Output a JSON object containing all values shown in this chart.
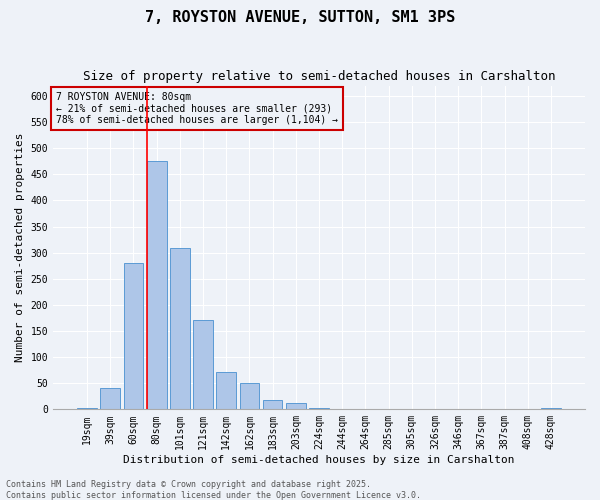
{
  "title": "7, ROYSTON AVENUE, SUTTON, SM1 3PS",
  "subtitle": "Size of property relative to semi-detached houses in Carshalton",
  "xlabel": "Distribution of semi-detached houses by size in Carshalton",
  "ylabel": "Number of semi-detached properties",
  "categories": [
    "19sqm",
    "39sqm",
    "60sqm",
    "80sqm",
    "101sqm",
    "121sqm",
    "142sqm",
    "162sqm",
    "183sqm",
    "203sqm",
    "224sqm",
    "244sqm",
    "264sqm",
    "285sqm",
    "305sqm",
    "326sqm",
    "346sqm",
    "367sqm",
    "387sqm",
    "408sqm",
    "428sqm"
  ],
  "values": [
    2,
    40,
    280,
    475,
    308,
    172,
    72,
    50,
    18,
    12,
    2,
    1,
    0,
    0,
    0,
    0,
    0,
    0,
    0,
    0,
    2
  ],
  "bar_color": "#aec6e8",
  "bar_edge_color": "#5b9bd5",
  "red_line_index": 3,
  "annotation_title": "7 ROYSTON AVENUE: 80sqm",
  "annotation_line1": "← 21% of semi-detached houses are smaller (293)",
  "annotation_line2": "78% of semi-detached houses are larger (1,104) →",
  "annotation_box_color": "#cc0000",
  "ylim": [
    0,
    620
  ],
  "yticks": [
    0,
    50,
    100,
    150,
    200,
    250,
    300,
    350,
    400,
    450,
    500,
    550,
    600
  ],
  "footer_line1": "Contains HM Land Registry data © Crown copyright and database right 2025.",
  "footer_line2": "Contains public sector information licensed under the Open Government Licence v3.0.",
  "background_color": "#eef2f8",
  "grid_color": "#ffffff",
  "title_fontsize": 11,
  "subtitle_fontsize": 9,
  "axis_label_fontsize": 8,
  "tick_fontsize": 7,
  "annotation_fontsize": 7,
  "footer_fontsize": 6
}
